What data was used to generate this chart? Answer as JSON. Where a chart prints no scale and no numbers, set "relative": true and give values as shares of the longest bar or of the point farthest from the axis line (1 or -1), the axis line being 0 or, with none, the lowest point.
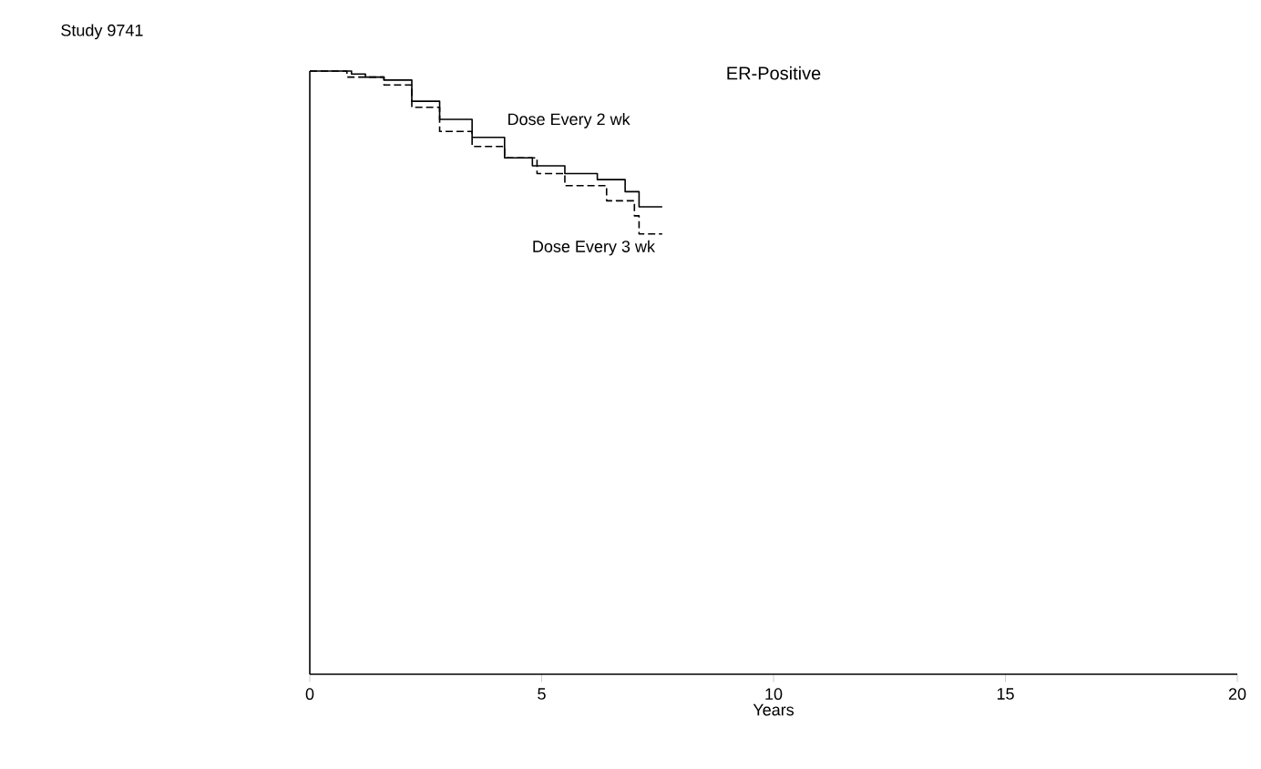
{
  "chart_data": {
    "type": "step",
    "title": "ER-Positive",
    "xlabel": "Years",
    "relative": true,
    "annotations": [
      "Study 9741"
    ],
    "xlim": [
      0,
      20
    ],
    "xticks": [
      0,
      5,
      10,
      15,
      20
    ],
    "series": [
      {
        "name": "Dose Every 2 wk",
        "color": "#000000",
        "line_style": "solid",
        "x": [
          0,
          0.9,
          1.2,
          1.6,
          2.2,
          2.8,
          3.5,
          4.2,
          4.8,
          5.5,
          6.2,
          6.8,
          7.1,
          7.6
        ],
        "values": [
          1.0,
          0.995,
          0.99,
          0.985,
          0.95,
          0.92,
          0.89,
          0.856,
          0.843,
          0.83,
          0.82,
          0.8,
          0.775,
          0.775
        ]
      },
      {
        "name": "Dose Every 3 wk",
        "color": "#000000",
        "line_style": "dashed",
        "x": [
          0,
          0.8,
          1.6,
          2.2,
          2.8,
          3.5,
          4.2,
          4.9,
          5.5,
          6.4,
          7.0,
          7.1,
          7.6
        ],
        "values": [
          1.0,
          0.99,
          0.977,
          0.94,
          0.9,
          0.875,
          0.856,
          0.83,
          0.81,
          0.785,
          0.76,
          0.73,
          0.73
        ]
      }
    ]
  }
}
